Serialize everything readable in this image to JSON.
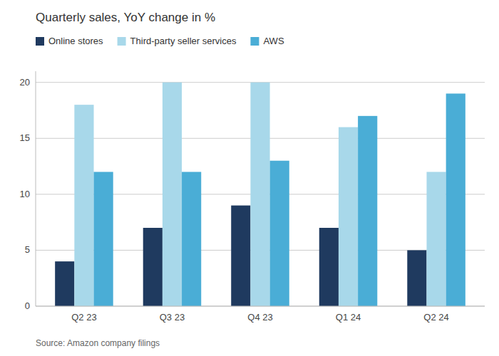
{
  "chart_data": {
    "type": "bar",
    "title": "Quarterly sales, YoY change in %",
    "annotations": [
      "Source: Amazon company filings"
    ],
    "categories": [
      "Q2 23",
      "Q3 23",
      "Q4 23",
      "Q1 24",
      "Q2 24"
    ],
    "series": [
      {
        "name": "Online stores",
        "color": "#1f3a5f",
        "values": [
          4,
          7,
          9,
          7,
          5
        ]
      },
      {
        "name": "Third-party seller services",
        "color": "#a8d8ea",
        "values": [
          18,
          20,
          20,
          16,
          12
        ]
      },
      {
        "name": "AWS",
        "color": "#4aadd6",
        "values": [
          12,
          12,
          13,
          17,
          19
        ]
      }
    ],
    "ylim": [
      0,
      21
    ],
    "yticks": [
      0,
      5,
      10,
      15,
      20
    ],
    "grid": true,
    "legend": "top-left"
  }
}
